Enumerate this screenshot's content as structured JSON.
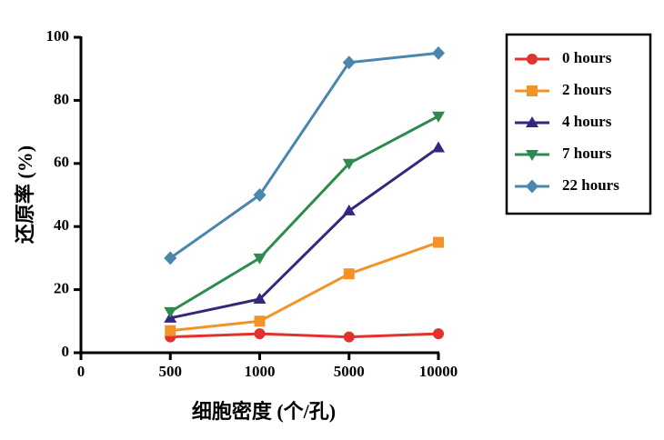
{
  "chart_data": {
    "type": "line",
    "x_label": "细胞密度 (个/孔)",
    "y_label": "还原率 (%)",
    "categories": [
      "0",
      "500",
      "1000",
      "5000",
      "10000"
    ],
    "series": [
      {
        "name": "0 hours",
        "color": "#e2312f",
        "marker": "circle",
        "values": [
          null,
          5,
          6,
          5,
          6
        ]
      },
      {
        "name": "2 hours",
        "color": "#f39227",
        "marker": "square",
        "values": [
          null,
          7,
          10,
          25,
          35
        ]
      },
      {
        "name": "4 hours",
        "color": "#35267f",
        "marker": "triangle-up",
        "values": [
          null,
          11,
          17,
          45,
          65
        ]
      },
      {
        "name": "7 hours",
        "color": "#2e8b4f",
        "marker": "triangle-down",
        "values": [
          null,
          13,
          30,
          60,
          75
        ]
      },
      {
        "name": "22 hours",
        "color": "#4a87ab",
        "marker": "diamond",
        "values": [
          null,
          30,
          50,
          92,
          95
        ]
      }
    ],
    "ylim": [
      0,
      100
    ],
    "yticks": [
      0,
      20,
      40,
      60,
      80,
      100
    ],
    "legend": "top-right"
  }
}
